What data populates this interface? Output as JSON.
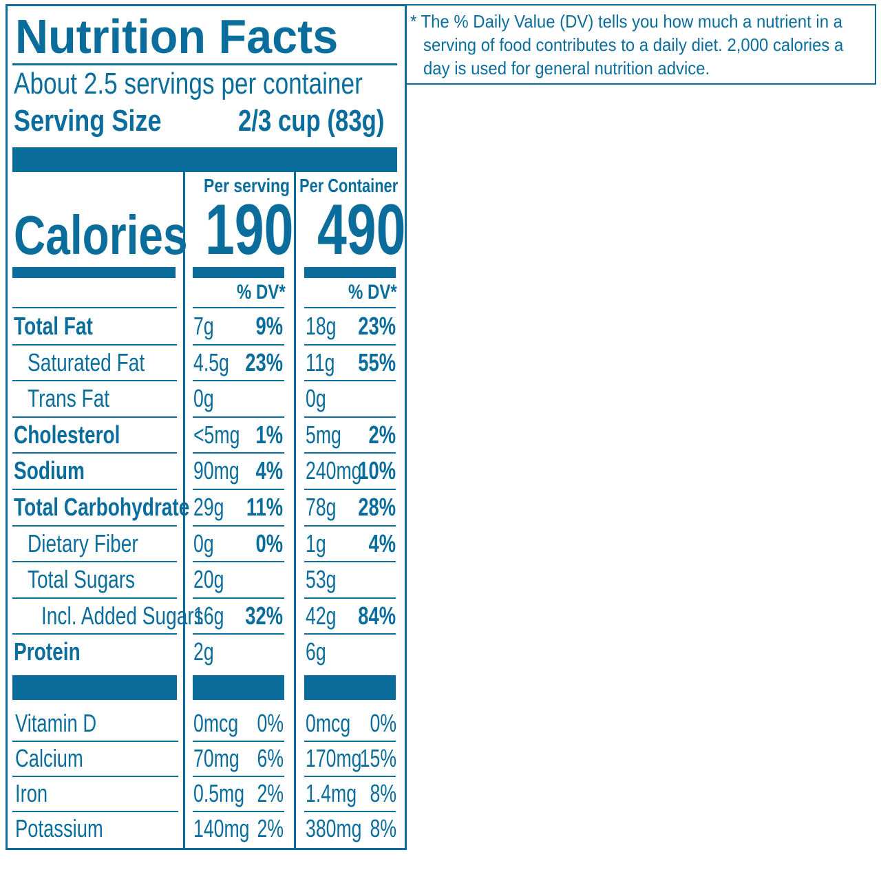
{
  "title": "Nutrition Facts",
  "servings_per_container": "About 2.5 servings per container",
  "serving_size_label": "Serving Size",
  "serving_size_value": "2/3 cup (83g)",
  "calories_label": "Calories",
  "per_serving_header": "Per serving",
  "per_container_header": "Per Container",
  "calories_per_serving": "190",
  "calories_per_container": "490",
  "dv_header": "% DV*",
  "nutrients": [
    {
      "name": "Total Fat",
      "serv_amt": "7g",
      "serv_dv": "9%",
      "cont_amt": "18g",
      "cont_dv": "23%"
    },
    {
      "name": "Saturated Fat",
      "serv_amt": "4.5g",
      "serv_dv": "23%",
      "cont_amt": "11g",
      "cont_dv": "55%"
    },
    {
      "name": "Trans Fat",
      "serv_amt": "0g",
      "serv_dv": "",
      "cont_amt": "0g",
      "cont_dv": ""
    },
    {
      "name": "Cholesterol",
      "serv_amt": "<5mg",
      "serv_dv": "1%",
      "cont_amt": "5mg",
      "cont_dv": "2%"
    },
    {
      "name": "Sodium",
      "serv_amt": "90mg",
      "serv_dv": "4%",
      "cont_amt": "240mg",
      "cont_dv": "10%"
    },
    {
      "name": "Total Carbohydrate",
      "serv_amt": "29g",
      "serv_dv": "11%",
      "cont_amt": "78g",
      "cont_dv": "28%"
    },
    {
      "name": "Dietary Fiber",
      "serv_amt": "0g",
      "serv_dv": "0%",
      "cont_amt": "1g",
      "cont_dv": "4%"
    },
    {
      "name": "Total Sugars",
      "serv_amt": "20g",
      "serv_dv": "",
      "cont_amt": "53g",
      "cont_dv": ""
    },
    {
      "name": "Incl. Added Sugars",
      "serv_amt": "16g",
      "serv_dv": "32%",
      "cont_amt": "42g",
      "cont_dv": "84%"
    },
    {
      "name": "Protein",
      "serv_amt": "2g",
      "serv_dv": "",
      "cont_amt": "6g",
      "cont_dv": ""
    }
  ],
  "vitamins": [
    {
      "name": "Vitamin D",
      "serv_amt": "0mcg",
      "serv_dv": "0%",
      "cont_amt": "0mcg",
      "cont_dv": "0%"
    },
    {
      "name": "Calcium",
      "serv_amt": "70mg",
      "serv_dv": "6%",
      "cont_amt": "170mg",
      "cont_dv": "15%"
    },
    {
      "name": "Iron",
      "serv_amt": "0.5mg",
      "serv_dv": "2%",
      "cont_amt": "1.4mg",
      "cont_dv": "8%"
    },
    {
      "name": "Potassium",
      "serv_amt": "140mg",
      "serv_dv": "2%",
      "cont_amt": "380mg",
      "cont_dv": "8%"
    }
  ],
  "footnote_line1": "* The % Daily Value (DV) tells you how much a nutrient in a",
  "footnote_line2": "serving of food contributes to a daily diet. 2,000 calories a",
  "footnote_line3": "day is used for general nutrition advice.",
  "colors": {
    "ink": "#0a6d9c",
    "background": "#ffffff"
  }
}
